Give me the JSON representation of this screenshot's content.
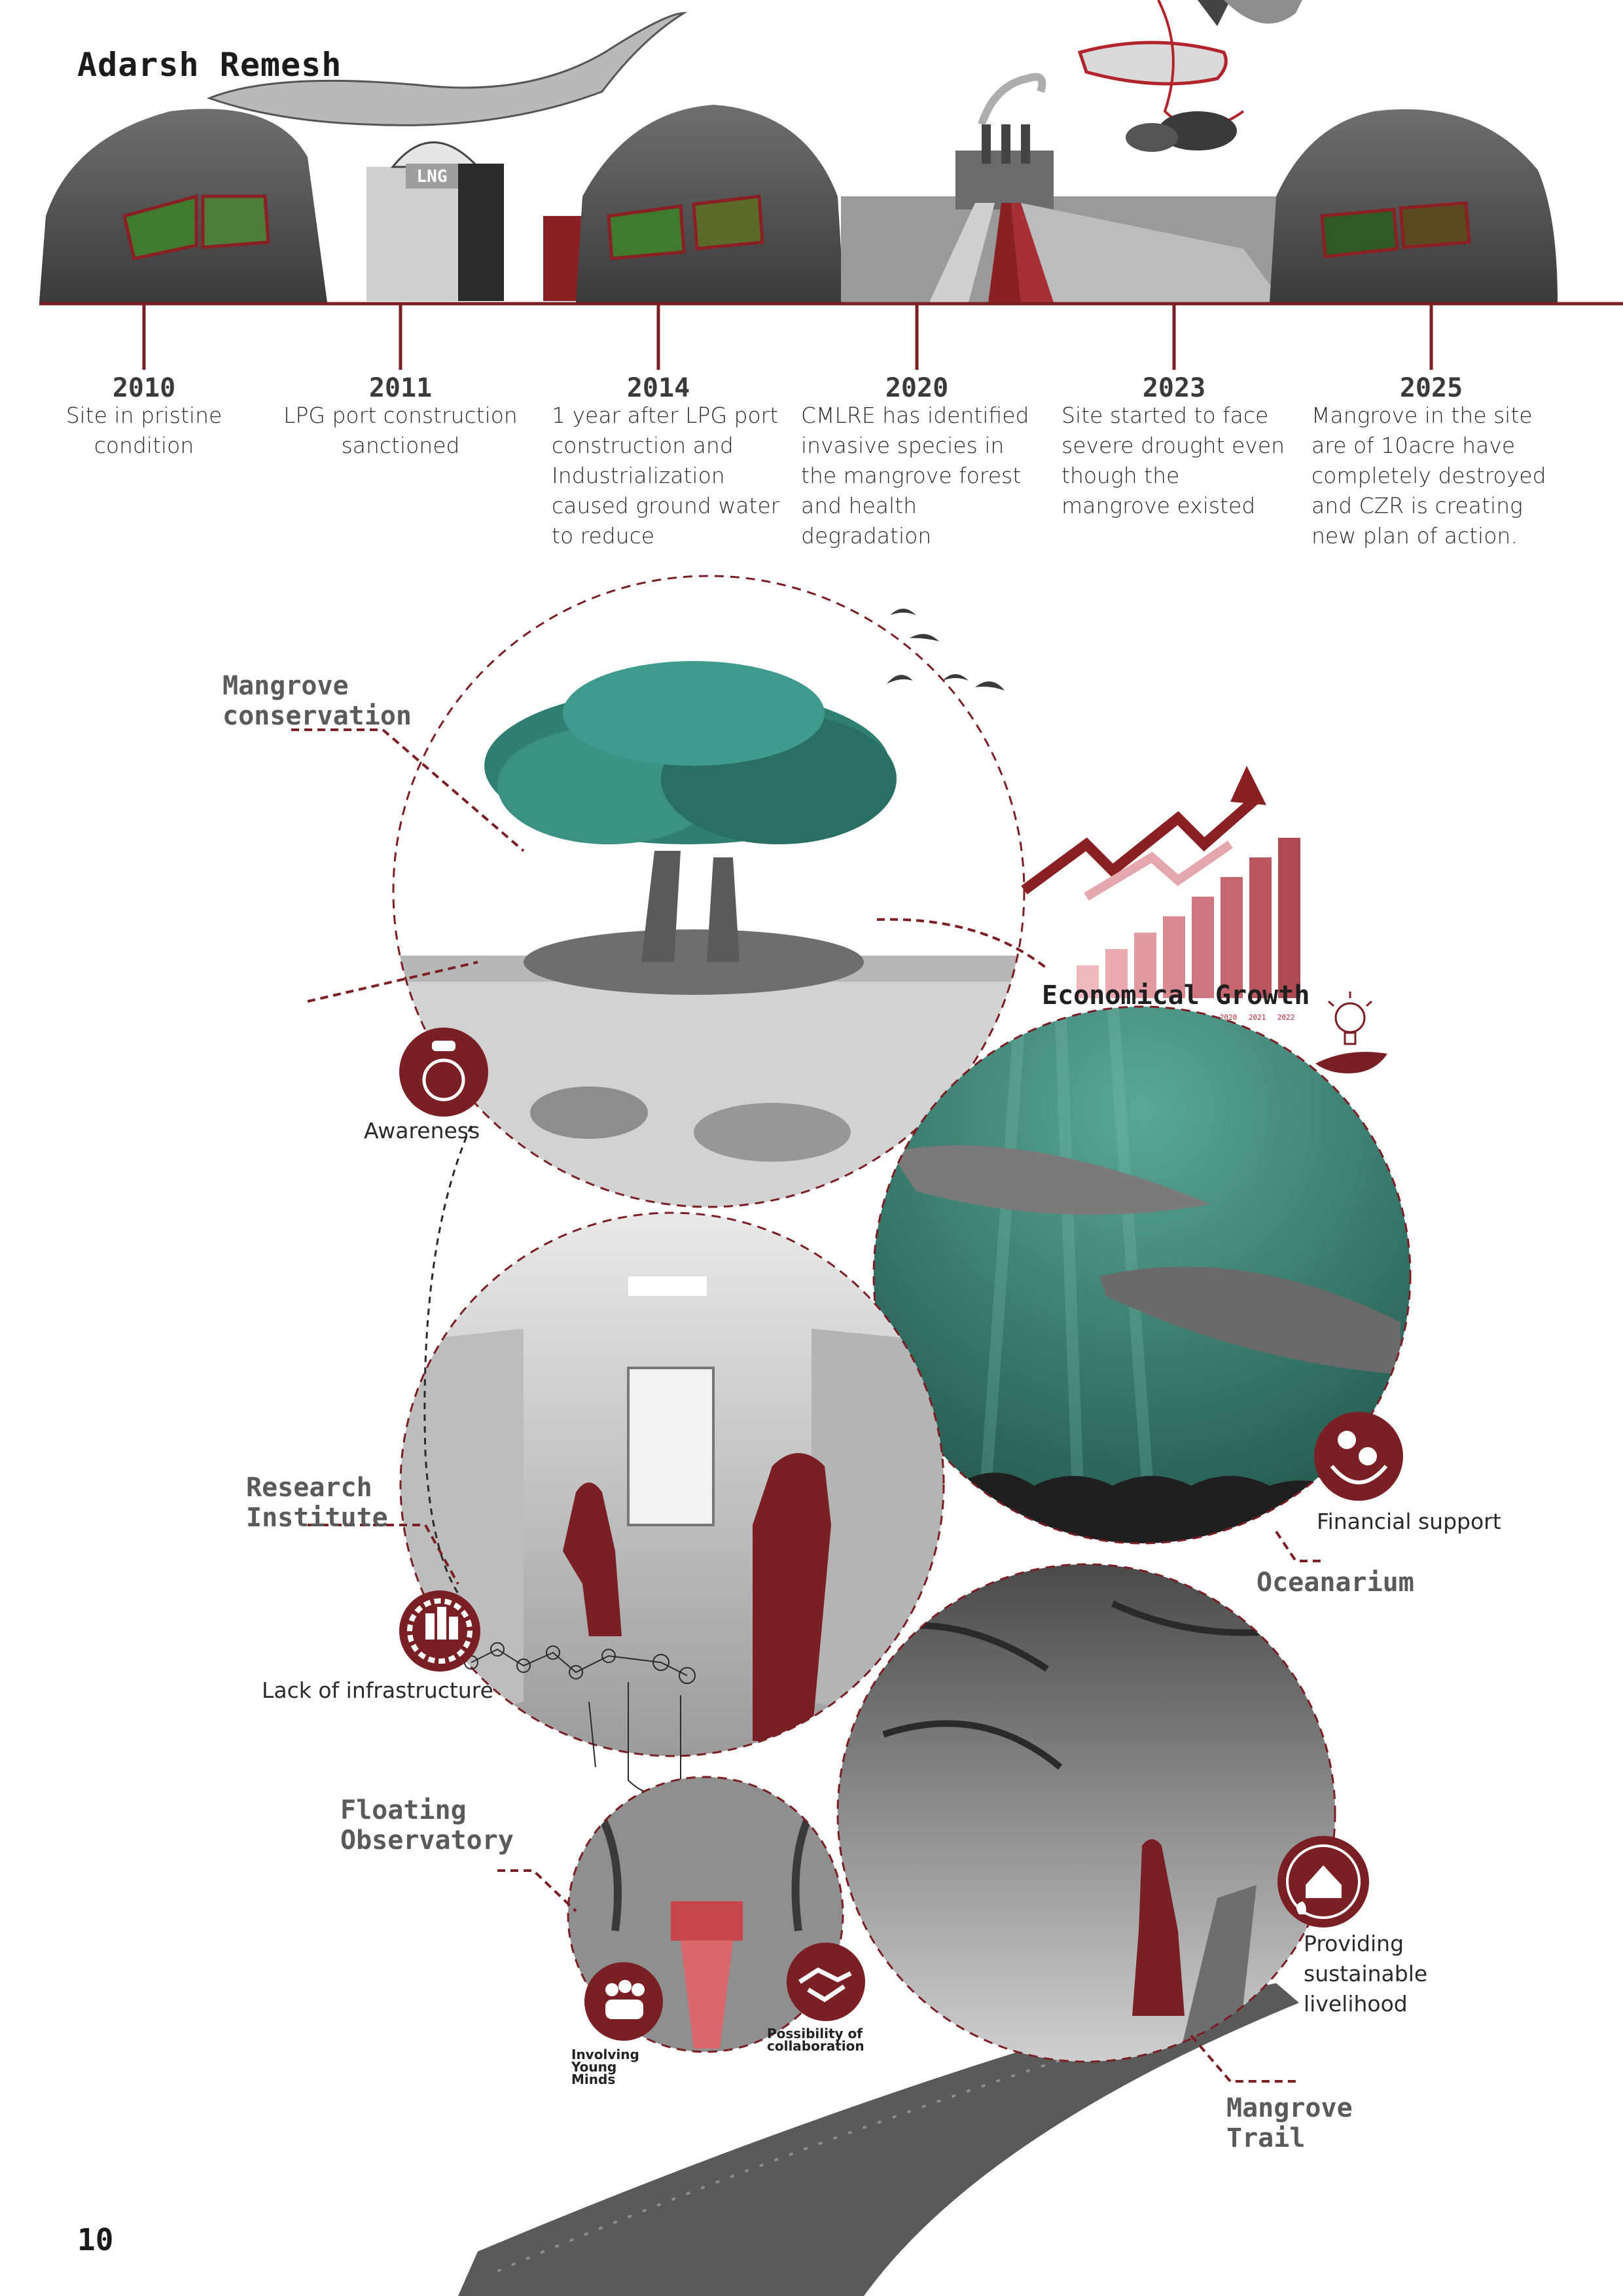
{
  "header": {
    "author": "Adarsh Remesh",
    "page_number": "10",
    "port_sign": "LNG"
  },
  "timeline": [
    {
      "year": "2010",
      "description": "Site in pristine condition"
    },
    {
      "year": "2011",
      "description": "LPG port construction sanctioned"
    },
    {
      "year": "2014",
      "description": "1 year after LPG port construction and Industrialization caused ground water to reduce"
    },
    {
      "year": "2020",
      "description": "CMLRE has identified invasive species in the mangrove forest and health degradation"
    },
    {
      "year": "2023",
      "description": "Site started to face severe drought even though the mangrove existed"
    },
    {
      "year": "2025",
      "description": "Mangrove in the site are of 10acre have completely destroyed and CZR is creating new plan of action."
    }
  ],
  "sections": {
    "mangrove_conservation": "Mangrove conservation",
    "economical_growth": "Economical Growth",
    "research_institute": "Research Institute",
    "oceanarium": "Oceanarium",
    "floating_observatory": "Floating Observatory",
    "mangrove_trail": "Mangrove Trail"
  },
  "icons": {
    "awareness": "Awareness",
    "financial_support": "Financial support",
    "lack_of_infrastructure": "Lack of infrastructure",
    "involving_young_minds": "Involving Young Minds",
    "possibility_of_collaboration": "Possibility of collaboration",
    "sustainable_livelihood": "Providing sustainable livelihood"
  },
  "growth_chart": {
    "x_ticks": [
      "2020",
      "2021",
      "2022"
    ]
  },
  "colors": {
    "accent": "#7a1f24",
    "teal": "#2f7f72",
    "pink": "#e4a7ad",
    "grey": "#8a8a8a"
  }
}
